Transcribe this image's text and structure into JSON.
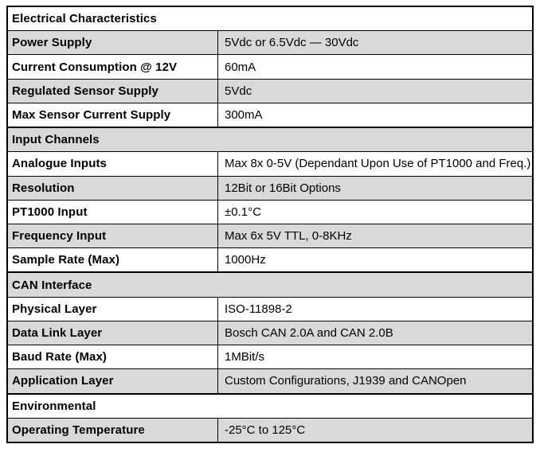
{
  "table": {
    "colors": {
      "row_shading": "#d9d9d9",
      "border": "#000000",
      "text": "#000000",
      "background": "#ffffff"
    },
    "sections": [
      {
        "title": "Electrical Characteristics",
        "rows": [
          {
            "label": "Power Supply",
            "value": "5Vdc or 6.5Vdc — 30Vdc"
          },
          {
            "label": "Current Consumption @ 12V",
            "value": "60mA"
          },
          {
            "label": "Regulated Sensor Supply",
            "value": "5Vdc"
          },
          {
            "label": "Max Sensor Current Supply",
            "value": "300mA"
          }
        ]
      },
      {
        "title": "Input Channels",
        "rows": [
          {
            "label": "Analogue Inputs",
            "value": "Max 8x 0-5V (Dependant Upon Use of PT1000 and Freq.)"
          },
          {
            "label": "Resolution",
            "value": "12Bit or 16Bit Options"
          },
          {
            "label": "PT1000 Input",
            "value": "±0.1°C"
          },
          {
            "label": "Frequency Input",
            "value": "Max 6x 5V TTL, 0-8KHz"
          },
          {
            "label": "Sample Rate (Max)",
            "value": "1000Hz"
          }
        ]
      },
      {
        "title": "CAN Interface",
        "rows": [
          {
            "label": "Physical Layer",
            "value": "ISO-11898-2"
          },
          {
            "label": "Data Link Layer",
            "value": "Bosch CAN 2.0A and CAN 2.0B"
          },
          {
            "label": "Baud Rate (Max)",
            "value": "1MBit/s"
          },
          {
            "label": "Application Layer",
            "value": "Custom Configurations, J1939 and CANOpen"
          }
        ]
      },
      {
        "title": "Environmental",
        "rows": [
          {
            "label": "Operating Temperature",
            "value": "-25°C to 125°C"
          }
        ]
      }
    ]
  }
}
